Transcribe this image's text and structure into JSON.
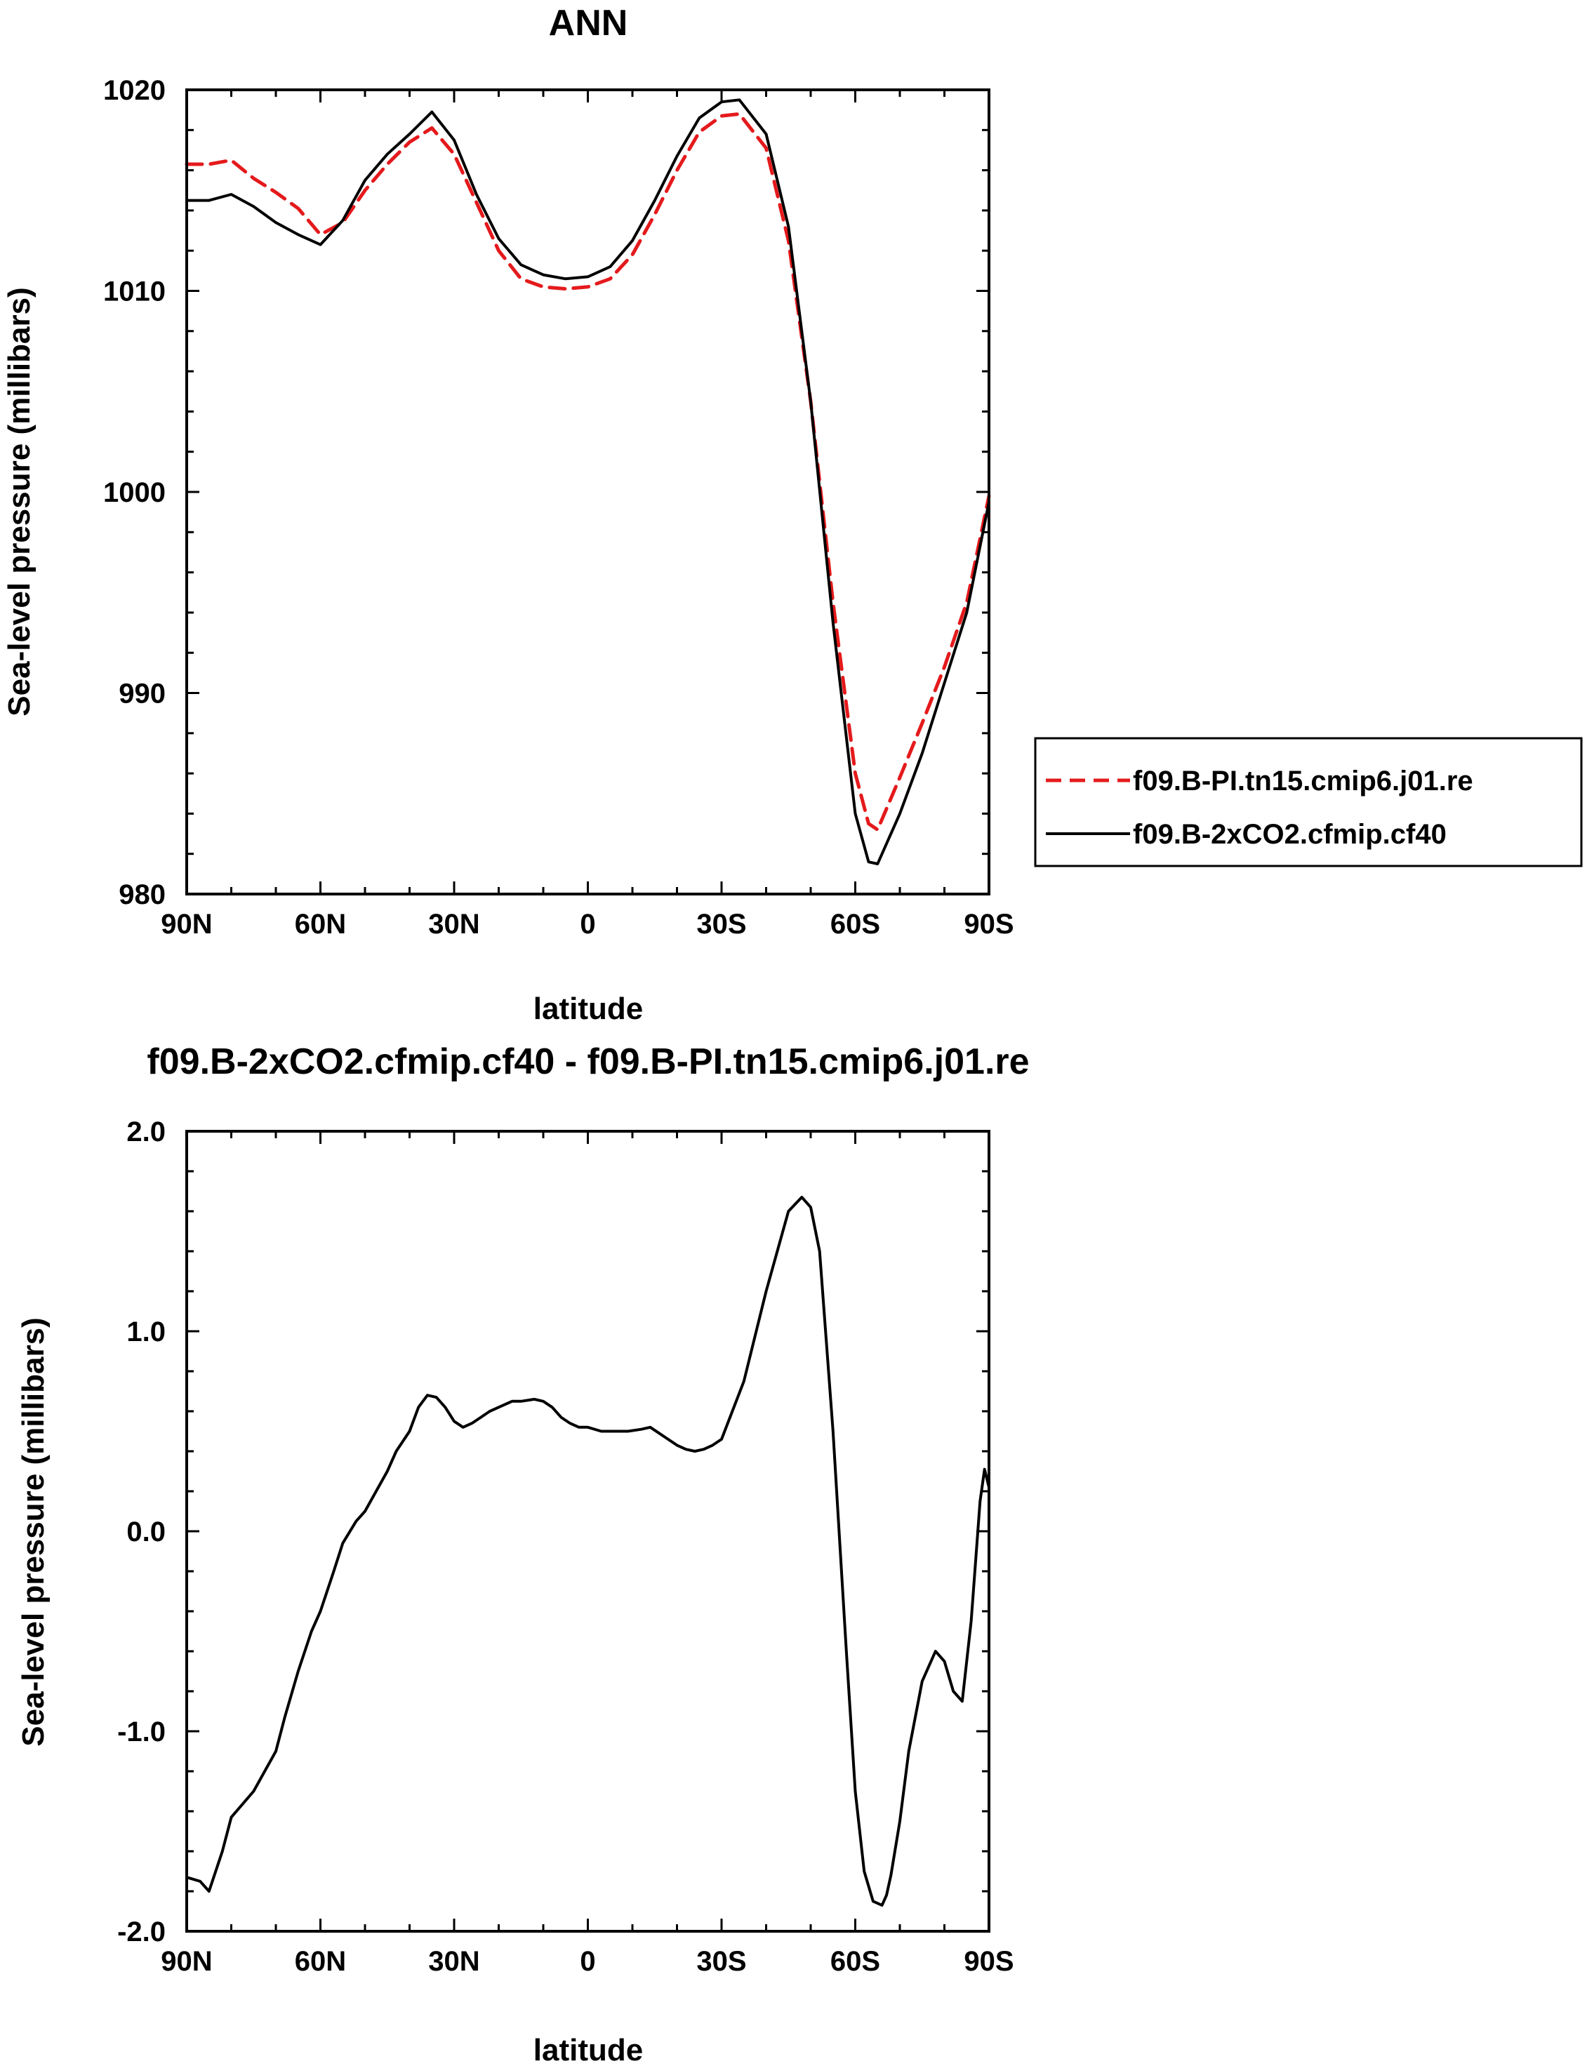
{
  "chart_data": [
    {
      "type": "line",
      "title": "ANN",
      "xlabel": "latitude",
      "ylabel": "Sea-level pressure (millibars)",
      "xlim": [
        90,
        -90
      ],
      "ylim": [
        980,
        1020
      ],
      "x_ticks": [
        90,
        60,
        30,
        0,
        -30,
        -60,
        -90
      ],
      "x_tick_labels": [
        "90N",
        "60N",
        "30N",
        "0",
        "30S",
        "60S",
        "90S"
      ],
      "y_ticks": [
        980,
        990,
        1000,
        1010,
        1020
      ],
      "y_tick_labels": [
        "980",
        "990",
        "1000",
        "1010",
        "1020"
      ],
      "grid": false,
      "legend": "right",
      "series": [
        {
          "name": "f09.B-PI.tn15.cmip6.j01.re",
          "color": "#e41a1c",
          "dash": "dashed",
          "x": [
            90,
            85,
            80,
            75,
            70,
            65,
            60,
            55,
            50,
            45,
            40,
            35,
            30,
            25,
            20,
            15,
            10,
            5,
            0,
            -5,
            -10,
            -15,
            -20,
            -25,
            -30,
            -34,
            -40,
            -45,
            -50,
            -55,
            -60,
            -63,
            -65,
            -70,
            -75,
            -80,
            -85,
            -90
          ],
          "values": [
            1016.3,
            1016.3,
            1016.5,
            1015.6,
            1014.9,
            1014.1,
            1012.8,
            1013.4,
            1015.0,
            1016.3,
            1017.4,
            1018.1,
            1016.8,
            1014.4,
            1012.0,
            1010.6,
            1010.2,
            1010.1,
            1010.2,
            1010.6,
            1011.8,
            1013.8,
            1016.0,
            1017.9,
            1018.7,
            1018.8,
            1017.1,
            1012.5,
            1004.5,
            994.5,
            986.0,
            983.5,
            983.2,
            985.8,
            988.5,
            991.3,
            994.5,
            999.8
          ]
        },
        {
          "name": "f09.B-2xCO2.cfmip.cf40",
          "color": "#000000",
          "dash": "solid",
          "x": [
            90,
            85,
            80,
            75,
            70,
            65,
            60,
            55,
            50,
            45,
            40,
            35,
            30,
            25,
            20,
            15,
            10,
            5,
            0,
            -5,
            -10,
            -15,
            -20,
            -25,
            -30,
            -34,
            -40,
            -45,
            -50,
            -55,
            -60,
            -63,
            -65,
            -70,
            -75,
            -80,
            -85,
            -90
          ],
          "values": [
            1014.5,
            1014.5,
            1014.8,
            1014.2,
            1013.4,
            1012.8,
            1012.3,
            1013.5,
            1015.5,
            1016.8,
            1017.8,
            1018.9,
            1017.5,
            1014.8,
            1012.6,
            1011.3,
            1010.8,
            1010.6,
            1010.7,
            1011.2,
            1012.5,
            1014.5,
            1016.7,
            1018.6,
            1019.4,
            1019.5,
            1017.8,
            1013.2,
            1004.5,
            993.5,
            984.0,
            981.6,
            981.5,
            984.0,
            987.0,
            990.5,
            994.0,
            999.5
          ]
        }
      ]
    },
    {
      "type": "line",
      "title": "f09.B-2xCO2.cfmip.cf40 - f09.B-PI.tn15.cmip6.j01.re",
      "xlabel": "latitude",
      "ylabel": "Sea-level pressure (millibars)",
      "xlim": [
        90,
        -90
      ],
      "ylim": [
        -2.0,
        2.0
      ],
      "x_ticks": [
        90,
        60,
        30,
        0,
        -30,
        -60,
        -90
      ],
      "x_tick_labels": [
        "90N",
        "60N",
        "30N",
        "0",
        "30S",
        "60S",
        "90S"
      ],
      "y_ticks": [
        -2.0,
        -1.0,
        0.0,
        1.0,
        2.0
      ],
      "y_tick_labels": [
        "-2.0",
        "-1.0",
        "0.0",
        "1.0",
        "2.0"
      ],
      "grid": false,
      "series": [
        {
          "color": "#000000",
          "dash": "solid",
          "x": [
            90,
            87,
            85,
            82,
            80,
            75,
            70,
            68,
            65,
            62,
            60,
            57,
            55,
            52,
            50,
            45,
            43,
            40,
            38,
            36,
            34,
            32,
            30,
            28,
            26,
            24,
            22,
            20,
            17,
            15,
            12,
            10,
            8,
            6,
            4,
            2,
            0,
            -3,
            -6,
            -9,
            -12,
            -14,
            -16,
            -18,
            -20,
            -22,
            -24,
            -26,
            -28,
            -30,
            -35,
            -40,
            -45,
            -48,
            -50,
            -52,
            -55,
            -58,
            -60,
            -62,
            -64,
            -66,
            -67,
            -68,
            -70,
            -72,
            -75,
            -78,
            -80,
            -82,
            -84,
            -86,
            -88,
            -89,
            -90
          ],
          "values": [
            -1.73,
            -1.75,
            -1.8,
            -1.6,
            -1.43,
            -1.3,
            -1.1,
            -0.93,
            -0.7,
            -0.5,
            -0.4,
            -0.2,
            -0.06,
            0.05,
            0.1,
            0.3,
            0.4,
            0.5,
            0.62,
            0.68,
            0.67,
            0.62,
            0.55,
            0.52,
            0.54,
            0.57,
            0.6,
            0.62,
            0.65,
            0.65,
            0.66,
            0.65,
            0.62,
            0.57,
            0.54,
            0.52,
            0.52,
            0.5,
            0.5,
            0.5,
            0.51,
            0.52,
            0.49,
            0.46,
            0.43,
            0.41,
            0.4,
            0.41,
            0.43,
            0.46,
            0.75,
            1.2,
            1.6,
            1.67,
            1.62,
            1.4,
            0.5,
            -0.6,
            -1.3,
            -1.7,
            -1.85,
            -1.87,
            -1.82,
            -1.72,
            -1.45,
            -1.1,
            -0.75,
            -0.6,
            -0.65,
            -0.8,
            -0.85,
            -0.45,
            0.15,
            0.31,
            0.22
          ]
        }
      ]
    }
  ]
}
